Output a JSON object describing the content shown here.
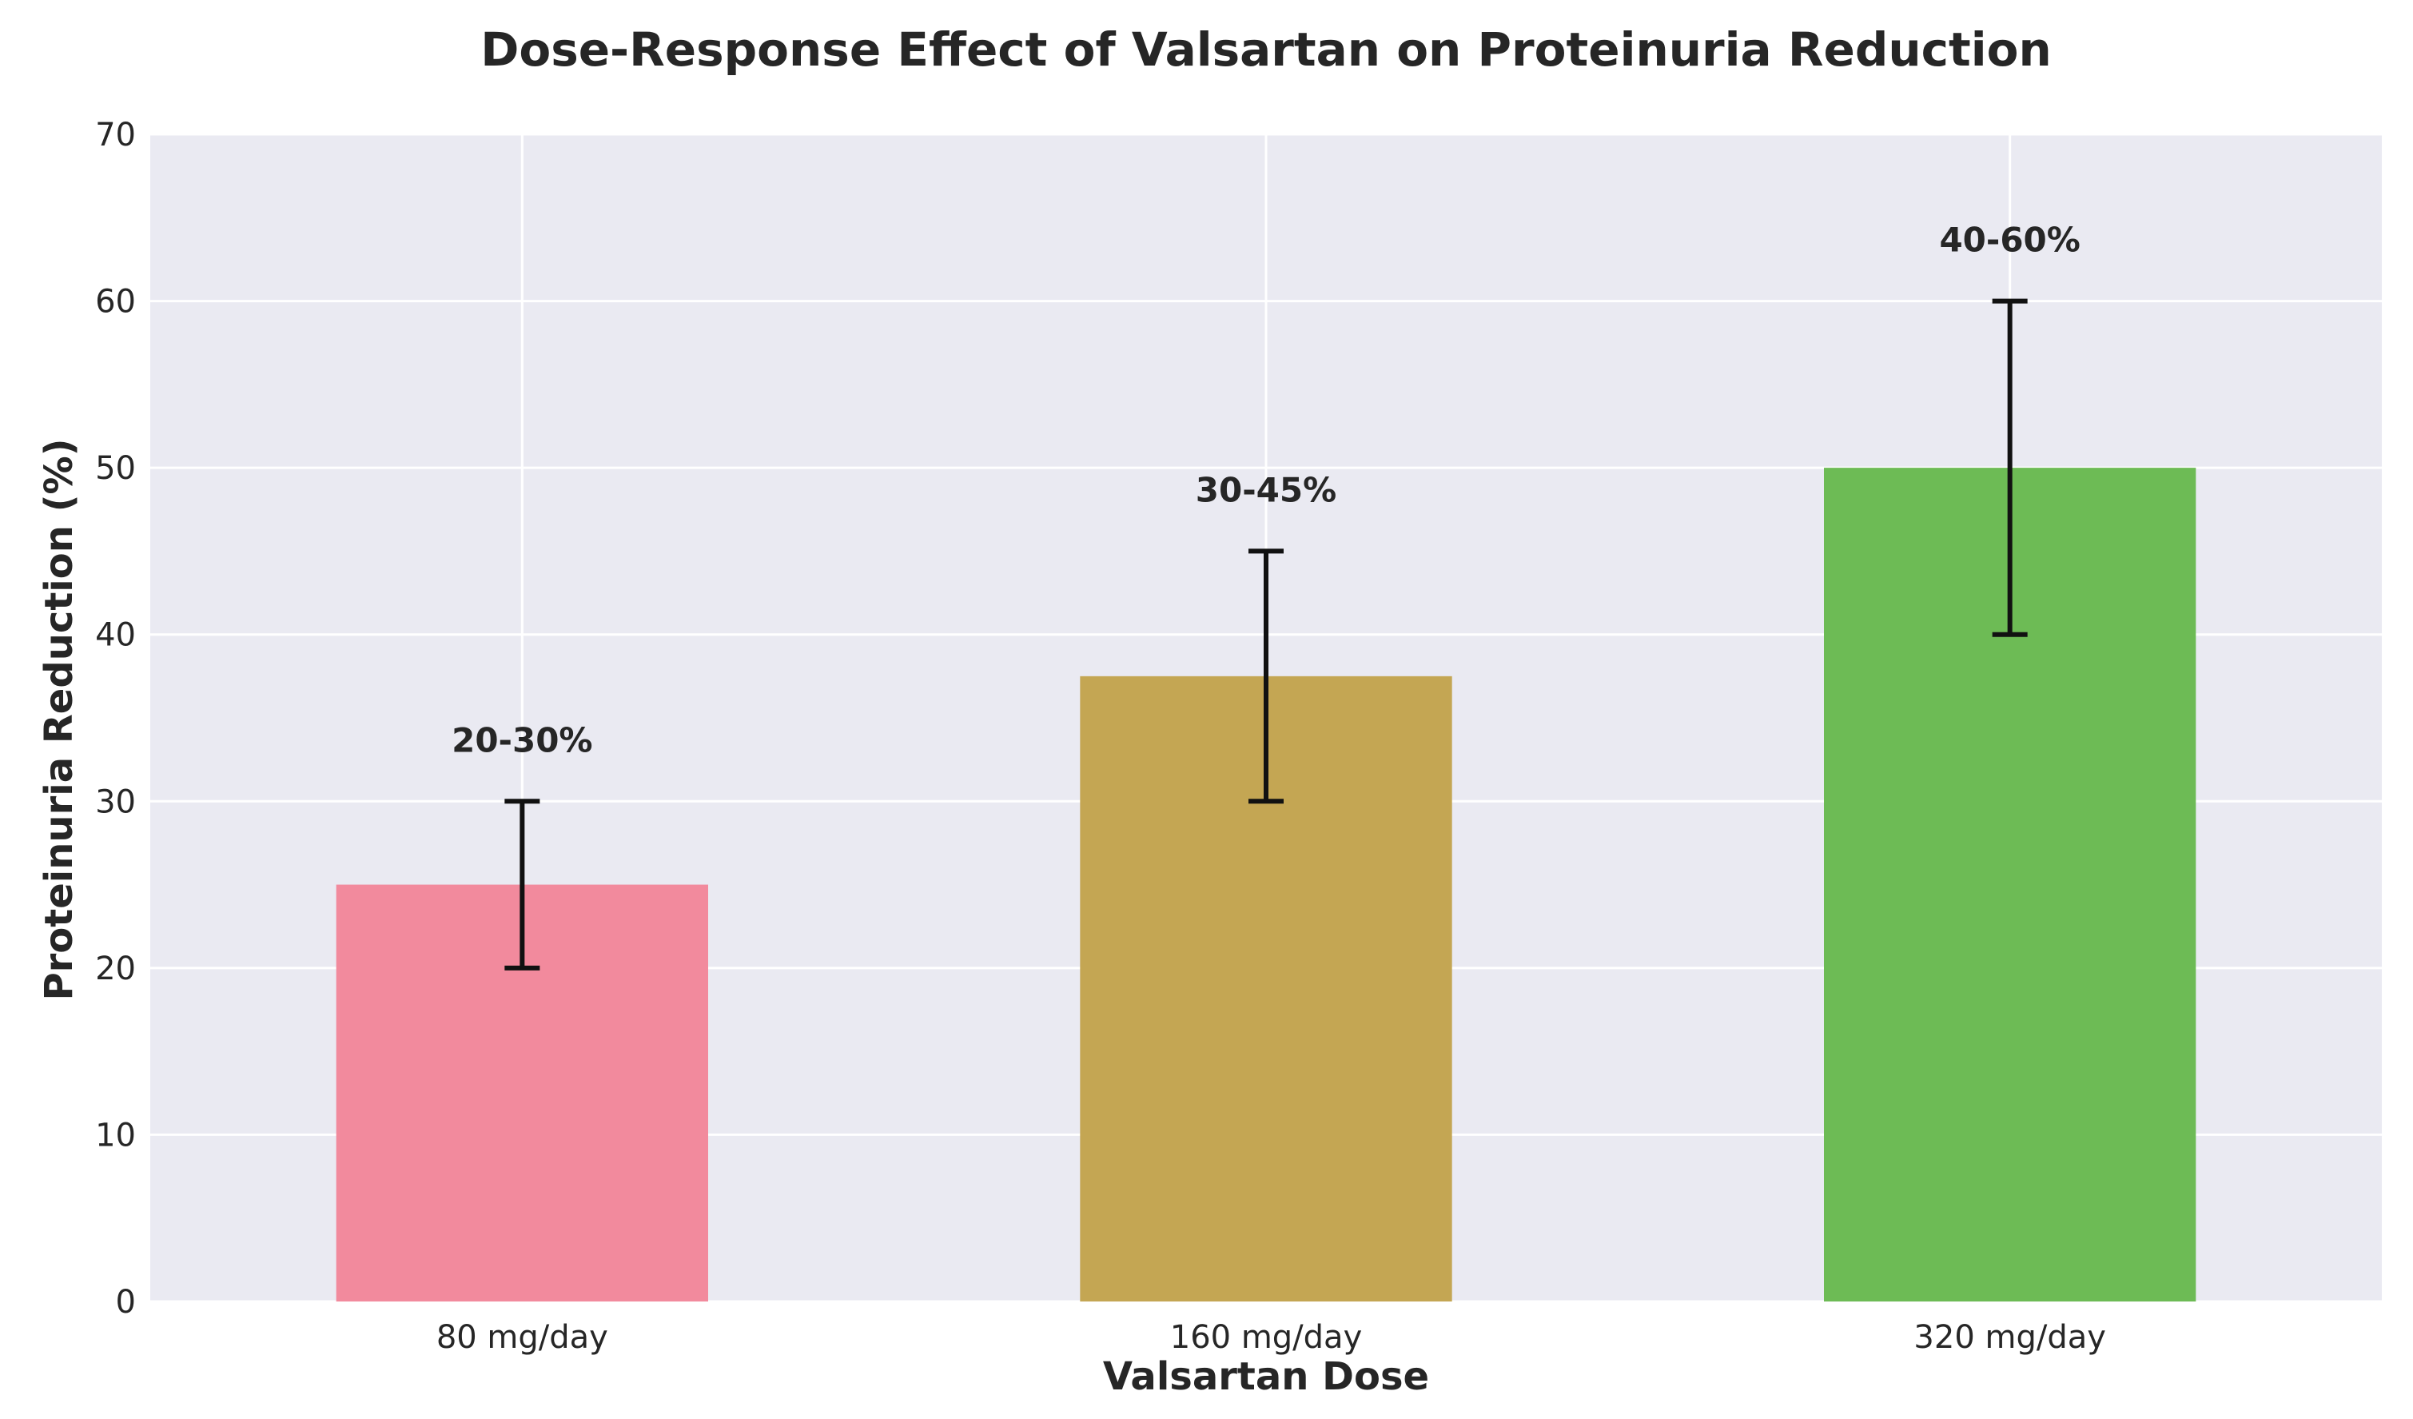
{
  "chart_data": {
    "type": "bar",
    "title": "Dose-Response Effect of Valsartan on Proteinuria Reduction",
    "xlabel": "Valsartan Dose",
    "ylabel": "Proteinuria Reduction (%)",
    "categories": [
      "80 mg/day",
      "160 mg/day",
      "320 mg/day"
    ],
    "values": [
      25,
      37.5,
      50
    ],
    "error_low": [
      20,
      30,
      40
    ],
    "error_high": [
      30,
      45,
      60
    ],
    "data_labels": [
      "20-30%",
      "30-45%",
      "40-60%"
    ],
    "colors": [
      "#f28a9d",
      "#c4a653",
      "#6dbb55"
    ],
    "ylim": [
      0,
      70
    ],
    "yticks": [
      0,
      10,
      20,
      30,
      40,
      50,
      60,
      70
    ],
    "grid": true,
    "background": "#eaeaf2"
  }
}
